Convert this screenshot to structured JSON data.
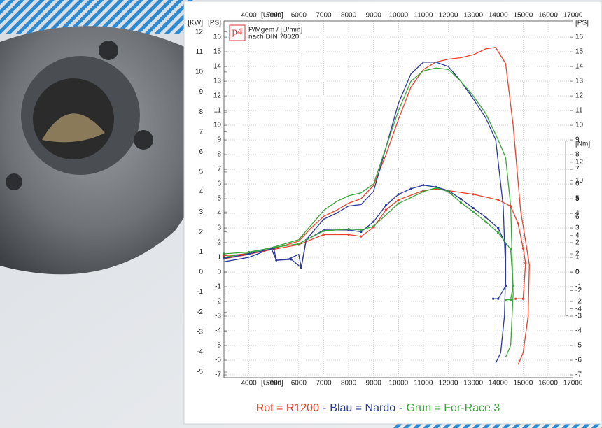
{
  "chart_data": {
    "type": "line",
    "logo": "p4",
    "title": "P/Mgem / [U/min]",
    "subtitle": "nach DIN 70020",
    "x_label": "[U/min]",
    "xlim": [
      3000,
      17000
    ],
    "xticks": [
      4000,
      5000,
      6000,
      7000,
      8000,
      9000,
      10000,
      11000,
      12000,
      13000,
      14000,
      15000,
      16000,
      17000
    ],
    "grid": true,
    "legend_separator": "-",
    "y_axes": [
      {
        "label": "[KW]",
        "side": "left",
        "lim": [
          -5.28,
          12.55
        ],
        "ticks": [
          -5,
          -4,
          -3,
          -2,
          -1,
          0,
          1,
          2,
          3,
          4,
          5,
          6,
          7,
          8,
          9,
          10,
          11,
          12
        ]
      },
      {
        "label": "[PS]",
        "side": "left",
        "lim": [
          -7.19,
          17.1
        ],
        "ticks": [
          -7,
          -6,
          -5,
          -4,
          -3,
          -2,
          -1,
          0,
          1,
          2,
          3,
          4,
          5,
          6,
          7,
          8,
          9,
          10,
          11,
          12,
          13,
          14,
          15,
          16
        ]
      },
      {
        "label": "[PS]",
        "side": "right",
        "lim": [
          -7.19,
          17.1
        ],
        "ticks": [
          -7,
          -6,
          -5,
          -4,
          -3,
          -2,
          -1,
          0,
          1,
          2,
          3,
          4,
          5,
          6,
          7,
          8,
          9,
          10,
          11,
          12,
          13,
          14,
          15,
          16
        ]
      },
      {
        "label": "[Nm]",
        "side": "right",
        "lim": [
          -11.5,
          27.4
        ],
        "ticks": [
          -4,
          -2,
          0,
          2,
          4,
          6,
          8,
          10,
          12
        ]
      }
    ],
    "series": [
      {
        "name": "Rot = R1200",
        "color": "#e8412e",
        "axis": 1,
        "x": [
          3000,
          4000,
          5000,
          6000,
          6500,
          7000,
          7500,
          8000,
          8500,
          9000,
          9500,
          10000,
          10500,
          11000,
          11500,
          12000,
          12500,
          13000,
          13500,
          13900,
          14300,
          14600,
          14900,
          15250,
          15200,
          15000,
          14800
        ],
        "values": [
          0.9,
          1.2,
          1.6,
          2.1,
          3.0,
          3.8,
          4.2,
          4.7,
          5.0,
          5.9,
          8.0,
          10.4,
          12.6,
          13.8,
          14.3,
          14.5,
          14.6,
          14.8,
          15.2,
          15.3,
          14.2,
          10.0,
          4.2,
          0.5,
          -3.0,
          -5.5,
          -6.3
        ]
      },
      {
        "name": "Blau = Nardo",
        "color": "#2b3a9a",
        "axis": 1,
        "x": [
          3000,
          4000,
          4900,
          5100,
          5600,
          6000,
          6100,
          6300,
          6700,
          7000,
          7500,
          8000,
          8500,
          9000,
          9500,
          10000,
          10500,
          11000,
          11500,
          12000,
          12500,
          13000,
          13500,
          13900,
          14200,
          14300,
          14250,
          14100,
          13900
        ],
        "values": [
          0.7,
          1.0,
          1.6,
          0.8,
          0.9,
          1.2,
          0.3,
          2.2,
          3.0,
          3.6,
          4.0,
          4.5,
          4.6,
          5.5,
          8.5,
          11.5,
          13.5,
          14.3,
          14.3,
          14.0,
          13.0,
          11.8,
          10.5,
          9.0,
          4.5,
          0.0,
          -3.0,
          -5.5,
          -6.2
        ]
      },
      {
        "name": "Grün = For-Race 3",
        "color": "#3aa639",
        "axis": 1,
        "x": [
          3000,
          4000,
          5000,
          6000,
          6500,
          7000,
          7500,
          8000,
          8500,
          9000,
          9500,
          10000,
          10500,
          11000,
          11500,
          12000,
          12500,
          13000,
          13500,
          14000,
          14300,
          14500,
          14600,
          14500,
          14300
        ],
        "values": [
          1.0,
          1.3,
          1.7,
          2.2,
          3.2,
          4.2,
          4.8,
          5.2,
          5.4,
          6.0,
          8.5,
          11.0,
          13.0,
          13.7,
          13.9,
          13.8,
          13.0,
          12.0,
          10.8,
          9.0,
          7.8,
          4.5,
          -1.5,
          -5.0,
          -5.8
        ]
      },
      {
        "color": "#e8412e",
        "axis": 3,
        "markers": true,
        "x": [
          3000,
          4000,
          5000,
          6000,
          7000,
          8000,
          8500,
          9000,
          9500,
          10000,
          11000,
          11500,
          12000,
          13000,
          14000,
          14500,
          14800,
          15000,
          15100,
          15000,
          14700
        ],
        "values": [
          1.8,
          2.0,
          2.5,
          3.0,
          4.1,
          4.1,
          3.9,
          4.9,
          6.8,
          7.9,
          8.9,
          9.1,
          8.9,
          8.5,
          7.9,
          7.2,
          5.3,
          2.6,
          1.0,
          -2.9,
          -2.9
        ]
      },
      {
        "color": "#2b3a9a",
        "axis": 3,
        "markers": true,
        "x": [
          3000,
          4000,
          5000,
          5100,
          5700,
          6100,
          6300,
          7000,
          8000,
          8500,
          9000,
          9500,
          10000,
          10500,
          11000,
          11500,
          12000,
          12500,
          13000,
          13500,
          14000,
          14300,
          14300,
          14000,
          13800
        ],
        "values": [
          1.5,
          2.0,
          2.6,
          1.3,
          1.4,
          0.5,
          3.5,
          4.6,
          4.6,
          4.4,
          5.5,
          7.3,
          8.5,
          9.1,
          9.5,
          9.3,
          8.9,
          8.0,
          7.0,
          6.0,
          4.8,
          3.0,
          -1.5,
          -2.9,
          -2.9
        ]
      },
      {
        "color": "#3aa639",
        "axis": 3,
        "markers": true,
        "x": [
          3000,
          4000,
          5000,
          6000,
          7000,
          8000,
          8500,
          9000,
          10000,
          11000,
          11500,
          12000,
          12500,
          13000,
          13500,
          14000,
          14500,
          14600,
          14500,
          14300
        ],
        "values": [
          2.0,
          2.2,
          2.7,
          3.1,
          4.5,
          4.7,
          4.6,
          5.0,
          7.5,
          8.8,
          9.2,
          8.8,
          7.6,
          6.6,
          5.5,
          4.3,
          2.5,
          -1.5,
          -3.0,
          -3.0
        ]
      }
    ]
  }
}
